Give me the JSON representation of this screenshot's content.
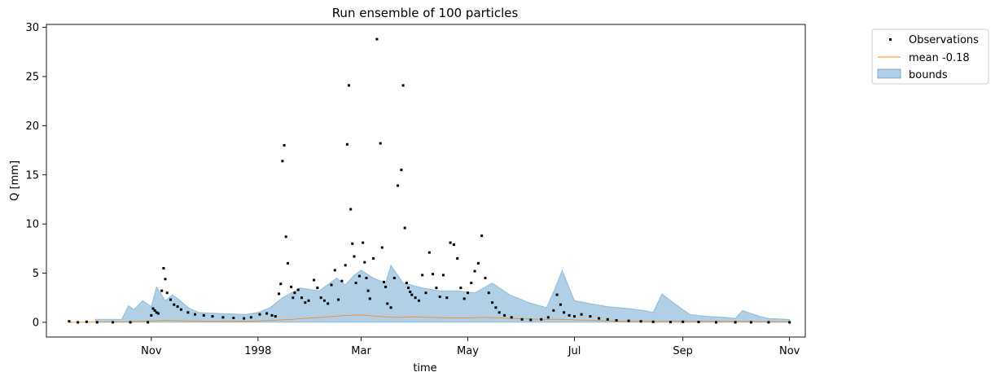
{
  "chart_data": {
    "type": "line",
    "title": "Run ensemble of 100 particles",
    "xlabel": "time",
    "ylabel": "Q [mm]",
    "xlim": [
      "1997-09-02",
      "1998-11-10"
    ],
    "ylim": [
      -1.5,
      30.3
    ],
    "grid": false,
    "legend_position": "outside-top-right",
    "x_tick_labels": [
      {
        "date": "1997-11-01",
        "label": "Nov"
      },
      {
        "date": "1998-01-01",
        "label": "1998"
      },
      {
        "date": "1998-03-01",
        "label": "Mar"
      },
      {
        "date": "1998-05-01",
        "label": "May"
      },
      {
        "date": "1998-07-01",
        "label": "Jul"
      },
      {
        "date": "1998-09-01",
        "label": "Sep"
      },
      {
        "date": "1998-11-01",
        "label": "Nov"
      }
    ],
    "y_ticks": [
      0,
      5,
      10,
      15,
      20,
      25,
      30
    ],
    "colors": {
      "observations": "#000000",
      "mean": "#ff7f0e",
      "bounds_fill": "#1f77b4"
    },
    "series": [
      {
        "name": "Observations",
        "kind": "scatter",
        "x": [
          "1997-09-15",
          "1997-09-20",
          "1997-09-25",
          "1997-10-01",
          "1997-10-10",
          "1997-10-20",
          "1997-10-30",
          "1997-11-01",
          "1997-11-02",
          "1997-11-03",
          "1997-11-04",
          "1997-11-05",
          "1997-11-07",
          "1997-11-08",
          "1997-11-09",
          "1997-11-10",
          "1997-11-12",
          "1997-11-14",
          "1997-11-16",
          "1997-11-18",
          "1997-11-22",
          "1997-11-26",
          "1997-12-01",
          "1997-12-06",
          "1997-12-12",
          "1997-12-18",
          "1997-12-24",
          "1997-12-28",
          "1998-01-02",
          "1998-01-06",
          "1998-01-09",
          "1998-01-11",
          "1998-01-13",
          "1998-01-14",
          "1998-01-15",
          "1998-01-16",
          "1998-01-17",
          "1998-01-18",
          "1998-01-20",
          "1998-01-21",
          "1998-01-22",
          "1998-01-24",
          "1998-01-26",
          "1998-01-28",
          "1998-01-30",
          "1998-02-02",
          "1998-02-04",
          "1998-02-06",
          "1998-02-08",
          "1998-02-10",
          "1998-02-12",
          "1998-02-14",
          "1998-02-16",
          "1998-02-18",
          "1998-02-20",
          "1998-02-21",
          "1998-02-22",
          "1998-02-23",
          "1998-02-24",
          "1998-02-25",
          "1998-02-26",
          "1998-02-28",
          "1998-03-02",
          "1998-03-03",
          "1998-03-04",
          "1998-03-05",
          "1998-03-06",
          "1998-03-08",
          "1998-03-10",
          "1998-03-12",
          "1998-03-13",
          "1998-03-14",
          "1998-03-15",
          "1998-03-16",
          "1998-03-18",
          "1998-03-20",
          "1998-03-22",
          "1998-03-24",
          "1998-03-25",
          "1998-03-26",
          "1998-03-27",
          "1998-03-28",
          "1998-03-29",
          "1998-03-30",
          "1998-04-01",
          "1998-04-03",
          "1998-04-05",
          "1998-04-07",
          "1998-04-09",
          "1998-04-11",
          "1998-04-13",
          "1998-04-15",
          "1998-04-17",
          "1998-04-19",
          "1998-04-21",
          "1998-04-23",
          "1998-04-25",
          "1998-04-27",
          "1998-04-29",
          "1998-05-01",
          "1998-05-03",
          "1998-05-05",
          "1998-05-07",
          "1998-05-09",
          "1998-05-11",
          "1998-05-13",
          "1998-05-15",
          "1998-05-17",
          "1998-05-19",
          "1998-05-22",
          "1998-05-26",
          "1998-06-01",
          "1998-06-06",
          "1998-06-12",
          "1998-06-16",
          "1998-06-19",
          "1998-06-21",
          "1998-06-23",
          "1998-06-25",
          "1998-06-28",
          "1998-07-01",
          "1998-07-05",
          "1998-07-10",
          "1998-07-15",
          "1998-07-20",
          "1998-07-25",
          "1998-08-01",
          "1998-08-08",
          "1998-08-15",
          "1998-08-25",
          "1998-09-01",
          "1998-09-10",
          "1998-09-20",
          "1998-10-01",
          "1998-10-10",
          "1998-10-20",
          "1998-11-01"
        ],
        "y": [
          0.1,
          0.0,
          0.05,
          0.0,
          0.0,
          0.0,
          0.0,
          0.7,
          1.4,
          1.2,
          1.0,
          0.9,
          3.2,
          5.5,
          4.4,
          3.0,
          2.3,
          1.8,
          1.6,
          1.3,
          1.0,
          0.8,
          0.7,
          0.6,
          0.5,
          0.45,
          0.4,
          0.5,
          0.8,
          0.9,
          0.7,
          0.6,
          2.9,
          3.9,
          16.4,
          18.0,
          8.7,
          6.0,
          3.6,
          2.5,
          3.0,
          3.3,
          2.5,
          2.0,
          2.2,
          4.3,
          3.5,
          2.5,
          2.2,
          1.9,
          3.8,
          5.3,
          2.3,
          4.2,
          5.8,
          18.1,
          24.1,
          11.5,
          8.0,
          6.7,
          4.0,
          4.7,
          8.1,
          6.1,
          4.5,
          3.2,
          2.4,
          6.5,
          28.8,
          18.2,
          7.6,
          4.1,
          3.6,
          1.9,
          1.5,
          4.5,
          13.9,
          15.5,
          24.1,
          9.6,
          4.0,
          3.5,
          3.1,
          2.8,
          2.5,
          2.2,
          4.8,
          3.0,
          7.1,
          4.9,
          3.5,
          2.6,
          4.8,
          2.5,
          8.1,
          7.9,
          6.5,
          3.5,
          2.4,
          3.0,
          4.0,
          5.2,
          6.0,
          8.8,
          4.5,
          3.0,
          2.0,
          1.5,
          1.0,
          0.7,
          0.5,
          0.3,
          0.25,
          0.3,
          0.5,
          1.2,
          2.8,
          1.8,
          1.0,
          0.7,
          0.6,
          0.8,
          0.6,
          0.4,
          0.3,
          0.2,
          0.15,
          0.1,
          0.05,
          0.02,
          0.05,
          0.03,
          0.0,
          0.0,
          0.0,
          0.0,
          0.0
        ]
      },
      {
        "name": "mean -0.18",
        "kind": "line",
        "x": [
          "1997-09-15",
          "1997-10-01",
          "1997-10-15",
          "1997-10-25",
          "1997-11-01",
          "1997-11-10",
          "1997-11-20",
          "1997-12-01",
          "1997-12-15",
          "1997-12-28",
          "1998-01-10",
          "1998-01-20",
          "1998-02-01",
          "1998-02-10",
          "1998-02-20",
          "1998-03-01",
          "1998-03-10",
          "1998-03-20",
          "1998-04-01",
          "1998-04-10",
          "1998-04-20",
          "1998-05-01",
          "1998-05-10",
          "1998-05-20",
          "1998-06-01",
          "1998-06-15",
          "1998-06-25",
          "1998-07-01",
          "1998-07-10",
          "1998-07-20",
          "1998-08-01",
          "1998-08-15",
          "1998-09-01",
          "1998-09-15",
          "1998-10-01",
          "1998-10-15",
          "1998-11-01"
        ],
        "y": [
          0.0,
          0.02,
          0.05,
          0.1,
          0.15,
          0.2,
          0.15,
          0.12,
          0.1,
          0.12,
          0.2,
          0.3,
          0.45,
          0.55,
          0.7,
          0.75,
          0.6,
          0.5,
          0.55,
          0.5,
          0.45,
          0.45,
          0.5,
          0.45,
          0.35,
          0.3,
          0.3,
          0.25,
          0.2,
          0.15,
          0.1,
          0.1,
          0.1,
          0.1,
          0.1,
          0.08,
          0.05
        ]
      },
      {
        "name": "bounds",
        "kind": "band",
        "x": [
          "1997-09-30",
          "1997-10-05",
          "1997-10-10",
          "1997-10-15",
          "1997-10-19",
          "1997-10-22",
          "1997-10-27",
          "1997-11-01",
          "1997-11-04",
          "1997-11-09",
          "1997-11-13",
          "1997-11-17",
          "1997-11-22",
          "1997-11-28",
          "1997-12-10",
          "1997-12-25",
          "1998-01-01",
          "1998-01-08",
          "1998-01-15",
          "1998-01-25",
          "1998-02-05",
          "1998-02-15",
          "1998-02-20",
          "1998-02-25",
          "1998-03-01",
          "1998-03-08",
          "1998-03-15",
          "1998-03-18",
          "1998-03-25",
          "1998-04-05",
          "1998-04-15",
          "1998-04-25",
          "1998-05-05",
          "1998-05-15",
          "1998-05-25",
          "1998-06-05",
          "1998-06-15",
          "1998-06-20",
          "1998-06-24",
          "1998-06-28",
          "1998-07-01",
          "1998-07-10",
          "1998-07-20",
          "1998-08-01",
          "1998-08-10",
          "1998-08-15",
          "1998-08-20",
          "1998-08-25",
          "1998-09-01",
          "1998-09-05",
          "1998-09-15",
          "1998-09-25",
          "1998-10-01",
          "1998-10-05",
          "1998-10-15",
          "1998-10-20",
          "1998-11-01"
        ],
        "lower": [
          0.0,
          0.0,
          0.0,
          0.0,
          0.0,
          0.0,
          0.0,
          0.0,
          0.0,
          0.0,
          0.0,
          0.0,
          0.0,
          0.0,
          0.0,
          0.0,
          0.0,
          0.0,
          0.0,
          0.0,
          0.0,
          0.0,
          0.0,
          0.0,
          0.0,
          0.0,
          0.0,
          0.0,
          0.0,
          0.0,
          0.0,
          0.0,
          0.0,
          0.0,
          0.0,
          0.0,
          0.0,
          0.0,
          0.0,
          0.0,
          0.0,
          0.0,
          0.0,
          0.0,
          0.0,
          0.0,
          0.0,
          0.0,
          0.0,
          0.0,
          0.0,
          0.0,
          0.0,
          0.0,
          0.0,
          0.0,
          0.0
        ],
        "upper": [
          0.3,
          0.3,
          0.3,
          0.3,
          1.7,
          1.3,
          2.2,
          1.6,
          3.6,
          2.2,
          2.8,
          2.3,
          1.5,
          1.0,
          0.9,
          0.8,
          1.0,
          1.5,
          2.5,
          3.5,
          3.2,
          4.5,
          3.8,
          4.8,
          5.3,
          4.5,
          4.0,
          5.8,
          4.0,
          3.5,
          3.2,
          3.2,
          3.0,
          4.0,
          2.8,
          2.0,
          1.5,
          3.5,
          5.3,
          3.5,
          2.2,
          1.9,
          1.6,
          1.4,
          1.2,
          1.0,
          2.9,
          2.2,
          1.3,
          0.8,
          0.6,
          0.5,
          0.4,
          1.2,
          0.6,
          0.4,
          0.3
        ]
      }
    ]
  }
}
